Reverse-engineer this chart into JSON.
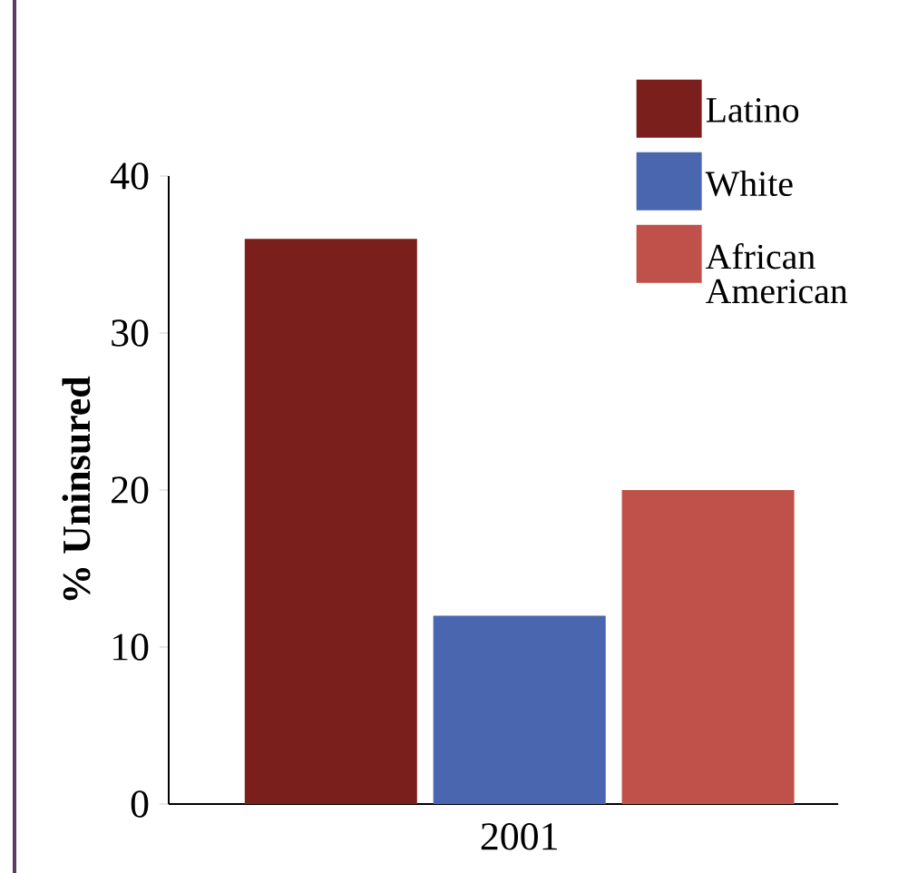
{
  "chart_data": {
    "type": "bar",
    "ylabel": "% Uninsured",
    "categories": [
      null,
      "2001",
      null
    ],
    "series": [
      {
        "name": "Latino",
        "color": "#7a1f1c",
        "values": [
          36,
          null,
          null
        ]
      },
      {
        "name": "White",
        "color": "#4a66ae",
        "values": [
          null,
          12,
          null
        ]
      },
      {
        "name": "African American",
        "color": "#c0504a",
        "values": [
          null,
          null,
          20
        ]
      }
    ],
    "ylim": [
      0,
      40
    ],
    "yticks": [
      0,
      10,
      20,
      30,
      40
    ],
    "legend": "top right"
  }
}
